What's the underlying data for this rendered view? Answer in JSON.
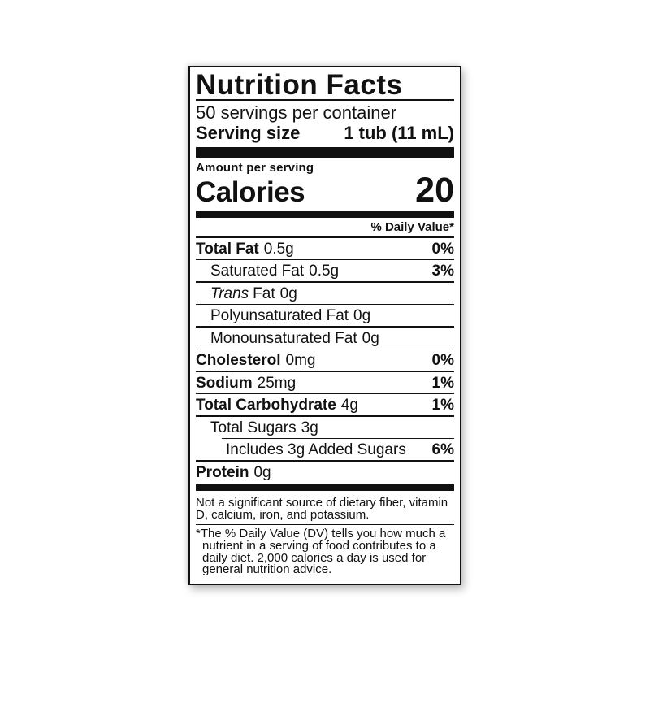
{
  "label": {
    "title": "Nutrition Facts",
    "servings_per_container": "50 servings per container",
    "serving_size": {
      "label": "Serving size",
      "value": "1 tub (11 mL)"
    },
    "amount_per_serving": "Amount per serving",
    "calories": {
      "label": "Calories",
      "value": "20"
    },
    "daily_value_header": "% Daily Value*",
    "rows": [
      {
        "name": "Total Fat",
        "amount": "0.5g",
        "dv": "0%"
      },
      {
        "name": "Saturated Fat",
        "amount": "0.5g",
        "dv": "3%"
      },
      {
        "name_italic": "Trans",
        "name": "Fat",
        "amount": "0g"
      },
      {
        "name": "Polyunsaturated Fat",
        "amount": "0g"
      },
      {
        "name": "Monounsaturated Fat",
        "amount": "0g"
      },
      {
        "name": "Cholesterol",
        "amount": "0mg",
        "dv": "0%"
      },
      {
        "name": "Sodium",
        "amount": "25mg",
        "dv": "1%"
      },
      {
        "name": "Total Carbohydrate",
        "amount": "4g",
        "dv": "1%"
      },
      {
        "name": "Total Sugars",
        "amount": "3g"
      },
      {
        "name": "Includes 3g Added Sugars",
        "dv": "6%"
      },
      {
        "name": "Protein",
        "amount": "0g"
      }
    ],
    "insignificant_note": "Not a significant source of dietary fiber, vitamin D, calcium, iron, and potassium.",
    "footnote": "*The % Daily Value (DV) tells you how much a nutrient in a serving of food contributes to a daily diet. 2,000 calories a day is used for general nutrition advice.",
    "colors": {
      "ink": "#111111",
      "background": "#ffffff"
    }
  }
}
